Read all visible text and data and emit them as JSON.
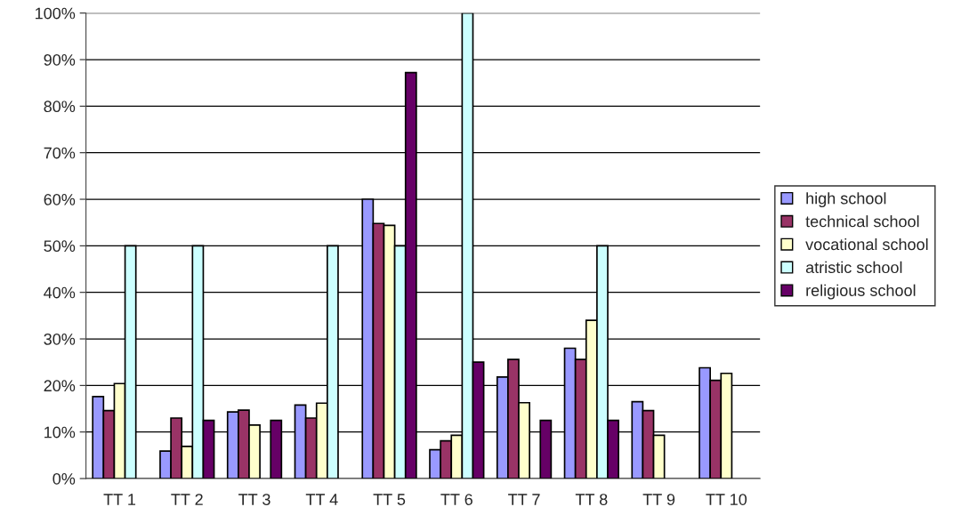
{
  "chart_data": {
    "type": "bar",
    "categories": [
      "TT 1",
      "TT 2",
      "TT 3",
      "TT 4",
      "TT 5",
      "TT 6",
      "TT 7",
      "TT 8",
      "TT 9",
      "TT 10"
    ],
    "series": [
      {
        "name": "high school",
        "color": "#9999ff",
        "values": [
          17.6,
          5.9,
          14.3,
          15.8,
          60,
          6.2,
          21.8,
          28,
          16.5,
          23.8
        ]
      },
      {
        "name": "technical school",
        "color": "#993366",
        "values": [
          14.6,
          13,
          14.7,
          13,
          54.8,
          8.1,
          25.6,
          25.6,
          14.6,
          21.1
        ]
      },
      {
        "name": "vocational school",
        "color": "#ffffcc",
        "values": [
          20.4,
          6.9,
          11.5,
          16.2,
          54.4,
          9.3,
          16.3,
          34,
          9.3,
          22.6
        ]
      },
      {
        "name": "atristic school",
        "color": "#ccffff",
        "values": [
          50,
          50,
          null,
          50,
          50,
          100,
          null,
          50,
          null,
          null
        ]
      },
      {
        "name": "religious school",
        "color": "#660066",
        "values": [
          null,
          12.5,
          12.5,
          null,
          87.2,
          25,
          12.5,
          12.5,
          null,
          null
        ]
      }
    ],
    "ylim": [
      0,
      100
    ],
    "yticks": [
      {
        "value": 0,
        "label": "0%"
      },
      {
        "value": 10,
        "label": "10%"
      },
      {
        "value": 20,
        "label": "20%"
      },
      {
        "value": 30,
        "label": "30%"
      },
      {
        "value": 40,
        "label": "40%"
      },
      {
        "value": 50,
        "label": "50%"
      },
      {
        "value": 60,
        "label": "60%"
      },
      {
        "value": 70,
        "label": "70%"
      },
      {
        "value": 80,
        "label": "80%"
      },
      {
        "value": 90,
        "label": "90%"
      },
      {
        "value": 100,
        "label": "100%"
      }
    ],
    "grid": "y",
    "legend": "right"
  }
}
